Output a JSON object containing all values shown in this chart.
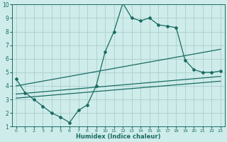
{
  "background_color": "#ceecea",
  "grid_color": "#aacfcc",
  "line_color": "#1a6b63",
  "x_label": "Humidex (Indice chaleur)",
  "xlim": [
    -0.5,
    23.5
  ],
  "ylim": [
    1,
    10
  ],
  "xticks": [
    0,
    1,
    2,
    3,
    4,
    5,
    6,
    7,
    8,
    9,
    10,
    11,
    12,
    13,
    14,
    15,
    16,
    17,
    18,
    19,
    20,
    21,
    22,
    23
  ],
  "yticks": [
    1,
    2,
    3,
    4,
    5,
    6,
    7,
    8,
    9,
    10
  ],
  "line1_x": [
    0,
    1,
    2,
    3,
    4,
    5,
    6,
    7,
    8,
    9,
    10,
    11,
    12,
    13,
    14,
    15,
    16,
    17,
    18,
    19,
    20,
    21,
    22,
    23
  ],
  "line1_y": [
    4.5,
    3.5,
    3.0,
    2.5,
    2.0,
    1.7,
    1.3,
    2.2,
    2.6,
    4.0,
    6.5,
    8.0,
    10.1,
    9.0,
    8.8,
    9.0,
    8.5,
    8.4,
    8.3,
    5.9,
    5.2,
    5.0,
    5.0,
    5.1
  ],
  "line2_x": [
    0,
    23
  ],
  "line2_y": [
    3.4,
    4.7
  ],
  "line3_x": [
    0,
    23
  ],
  "line3_y": [
    4.0,
    6.7
  ],
  "line4_x": [
    0,
    23
  ],
  "line4_y": [
    3.1,
    4.35
  ]
}
